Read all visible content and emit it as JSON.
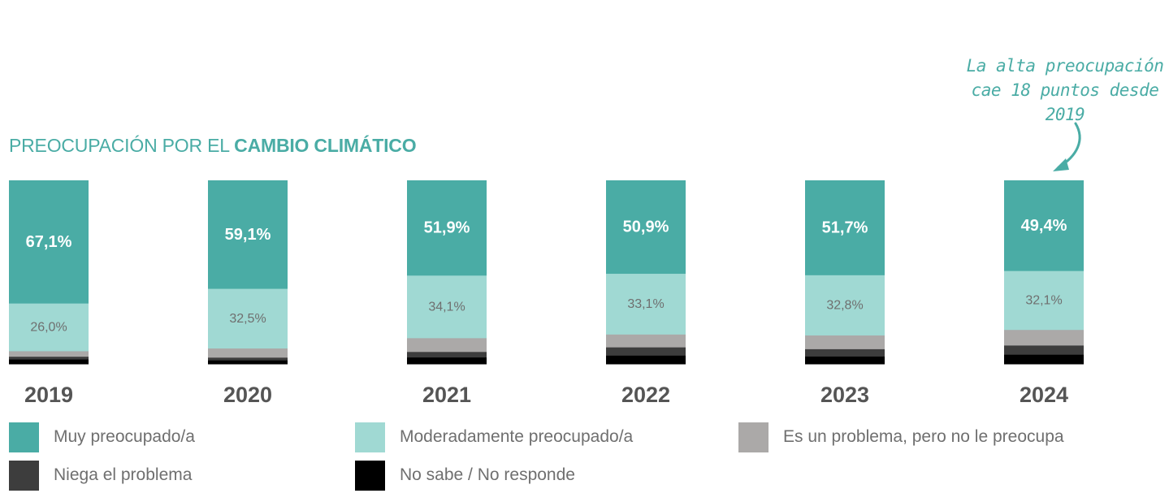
{
  "title": {
    "normal": "PREOCUPACIÓN POR EL ",
    "bold": "CAMBIO CLIMÁTICO"
  },
  "annotation": [
    "La alta preocupación",
    "cae 18 puntos desde",
    "2019"
  ],
  "chart_data": {
    "type": "bar",
    "stacked": true,
    "normalized_to": 100,
    "categories": [
      "2019",
      "2020",
      "2021",
      "2022",
      "2023",
      "2024"
    ],
    "series": [
      {
        "name": "Muy preocupado/a",
        "color": "#4aaca5",
        "values": [
          67.1,
          59.1,
          51.9,
          50.9,
          51.7,
          49.4
        ],
        "labels": [
          "67,1%",
          "59,1%",
          "51,9%",
          "50,9%",
          "51,7%",
          "49,4%"
        ]
      },
      {
        "name": "Moderadamente preocupado/a",
        "color": "#a0d9d3",
        "values": [
          26.0,
          32.5,
          34.1,
          33.1,
          32.8,
          32.1
        ],
        "labels": [
          "26,0%",
          "32,5%",
          "34,1%",
          "33,1%",
          "32,8%",
          "32,1%"
        ]
      },
      {
        "name": "Es un problema, pero no le preocupa",
        "color": "#aba9a8",
        "values": [
          3.0,
          5.0,
          7.5,
          7.0,
          7.5,
          8.5
        ]
      },
      {
        "name": "Niega el problema",
        "color": "#3d3d3d",
        "values": [
          1.5,
          1.5,
          3.0,
          4.5,
          4.0,
          5.0
        ]
      },
      {
        "name": "No sabe / No responde",
        "color": "#000000",
        "values": [
          2.4,
          1.9,
          3.5,
          4.5,
          4.0,
          5.0
        ]
      }
    ]
  }
}
